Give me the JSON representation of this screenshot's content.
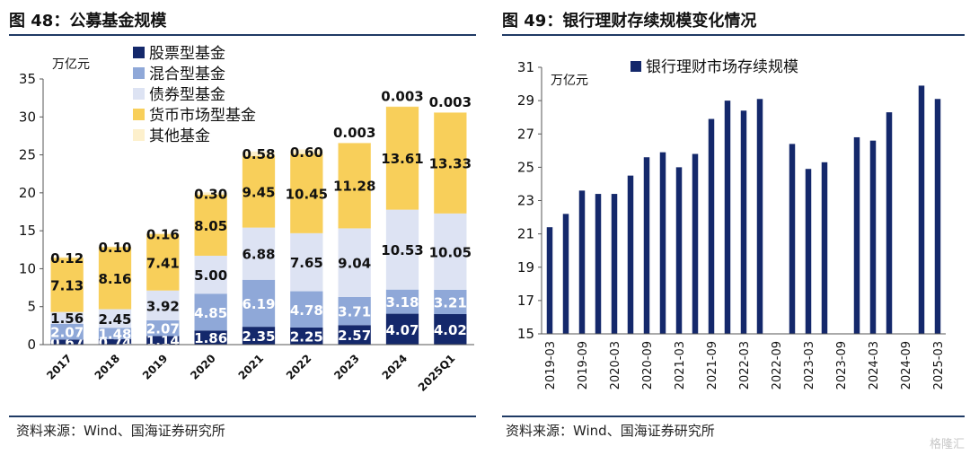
{
  "left": {
    "title": "图 48：公募基金规模",
    "source": "资料来源：Wind、国海证券研究所",
    "chart_data": {
      "type": "bar",
      "stacked": true,
      "unit_label": "万亿元",
      "categories": [
        "2017",
        "2018",
        "2019",
        "2020",
        "2021",
        "2022",
        "2023",
        "2024",
        "2025Q1"
      ],
      "ylim": [
        0,
        35
      ],
      "yticks": [
        "0",
        "5",
        "10",
        "15",
        "20",
        "25",
        "30",
        "35"
      ],
      "legend_position": "top-left",
      "series": [
        {
          "name": "股票型基金",
          "color": "#14286b",
          "values": [
            0.67,
            0.74,
            1.14,
            1.86,
            2.35,
            2.25,
            2.57,
            4.07,
            4.02
          ],
          "labels": [
            "0.67",
            "0.74",
            "1.14",
            "1.86",
            "2.35",
            "2.25",
            "2.57",
            "4.07",
            "4.02"
          ]
        },
        {
          "name": "混合型基金",
          "color": "#8fa8d8",
          "values": [
            2.07,
            1.48,
            2.07,
            4.85,
            6.19,
            4.78,
            3.71,
            3.18,
            3.21
          ],
          "labels": [
            "2.07",
            "1.48",
            "2.07",
            "4.85",
            "6.19",
            "4.78",
            "3.71",
            "3.18",
            "3.21"
          ]
        },
        {
          "name": "债券型基金",
          "color": "#dde3f3",
          "values": [
            1.56,
            2.45,
            3.92,
            5.0,
            6.88,
            7.65,
            9.04,
            10.53,
            10.05
          ],
          "labels": [
            "1.56",
            "2.45",
            "3.92",
            "5.00",
            "6.88",
            "7.65",
            "9.04",
            "10.53",
            "10.05"
          ]
        },
        {
          "name": "货币市场型基金",
          "color": "#f8cf5a",
          "values": [
            7.13,
            8.16,
            7.41,
            8.05,
            9.45,
            10.45,
            11.28,
            13.61,
            13.33
          ],
          "labels": [
            "7.13",
            "8.16",
            "7.41",
            "8.05",
            "9.45",
            "10.45",
            "11.28",
            "13.61",
            "13.33"
          ]
        },
        {
          "name": "其他基金",
          "color": "#fdf0cc",
          "values": [
            0.12,
            0.1,
            0.16,
            0.3,
            0.58,
            0.6,
            0.003,
            0.003,
            0.003
          ],
          "labels": [
            "0.12",
            "0.10",
            "0.16",
            "0.30",
            "0.58",
            "0.60",
            "0.003",
            "0.003",
            "0.003"
          ]
        }
      ]
    }
  },
  "right": {
    "title": "图 49：银行理财存续规模变化情况",
    "source": "资料来源：Wind、国海证券研究所",
    "chart_data": {
      "type": "bar",
      "unit_label": "万亿元",
      "x": [
        "2019-03",
        "2019-06",
        "2019-09",
        "2019-12",
        "2020-03",
        "2020-06",
        "2020-09",
        "2020-12",
        "2021-03",
        "2021-06",
        "2021-09",
        "2021-12",
        "2022-03",
        "2022-06",
        "2022-09",
        "2022-12",
        "2023-03",
        "2023-06",
        "2023-09",
        "2023-12",
        "2024-03",
        "2024-06",
        "2024-09",
        "2024-12",
        "2025-03"
      ],
      "xtick_labels": [
        "2019-03",
        "2019-09",
        "2020-03",
        "2020-09",
        "2021-03",
        "2021-09",
        "2022-03",
        "2022-09",
        "2023-03",
        "2023-09",
        "2024-03",
        "2024-09",
        "2025-03"
      ],
      "ylim": [
        15,
        31
      ],
      "yticks": [
        "15",
        "17",
        "19",
        "21",
        "23",
        "25",
        "27",
        "29",
        "31"
      ],
      "legend_position": "top",
      "series": [
        {
          "name": "银行理财市场存续规模",
          "color": "#14286b",
          "values": [
            21.4,
            22.2,
            23.6,
            23.4,
            23.4,
            24.5,
            25.6,
            25.9,
            25.0,
            25.8,
            27.9,
            29.0,
            28.4,
            29.1,
            null,
            26.4,
            24.9,
            25.3,
            null,
            26.8,
            26.6,
            28.3,
            null,
            29.9,
            29.1
          ]
        }
      ]
    }
  },
  "watermark": "格隆汇"
}
